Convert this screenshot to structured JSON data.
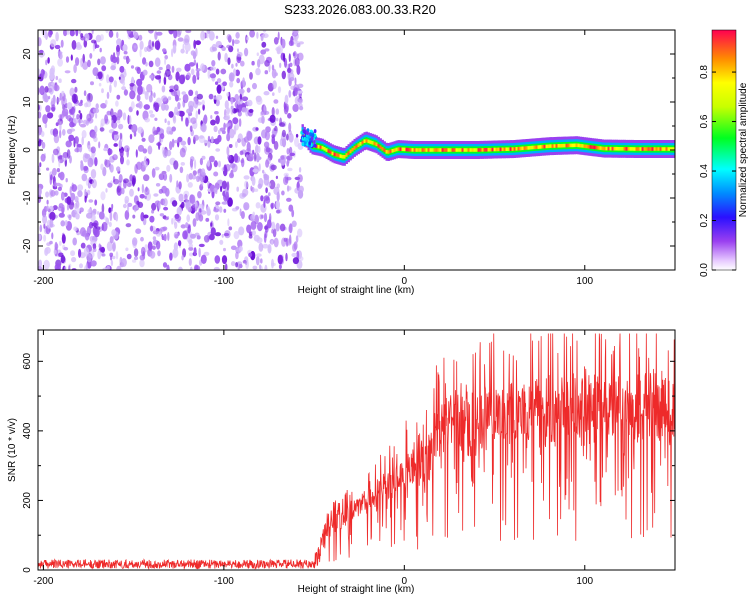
{
  "title": "S233.2026.083.00.33.R20",
  "colors": {
    "snr_line": "#ee2a2a",
    "background": "#ffffff"
  },
  "chart_data": [
    {
      "type": "heatmap",
      "name": "spectrogram",
      "xlabel": "Height of straight line (km)",
      "ylabel": "Frequency (Hz)",
      "xlim": [
        -203,
        150
      ],
      "ylim": [
        -25,
        25
      ],
      "xticks": [
        "-200",
        "-100",
        "0",
        "100"
      ],
      "xtick_values": [
        -200,
        -100,
        0,
        100
      ],
      "yticks": [
        "20",
        "10",
        "0",
        "-10",
        "-20"
      ],
      "ytick_values": [
        20,
        10,
        0,
        -10,
        -20
      ],
      "noise_region_x": [
        -203,
        -57
      ],
      "signal_track": [
        {
          "x": -57,
          "y": 3.5
        },
        {
          "x": -52,
          "y": 1.0
        },
        {
          "x": -46,
          "y": 0.5
        },
        {
          "x": -40,
          "y": -0.8
        },
        {
          "x": -34,
          "y": -1.5
        },
        {
          "x": -28,
          "y": 0.5
        },
        {
          "x": -22,
          "y": 2.0
        },
        {
          "x": -16,
          "y": 1.2
        },
        {
          "x": -10,
          "y": -0.5
        },
        {
          "x": -4,
          "y": 0.2
        },
        {
          "x": 5,
          "y": 0.0
        },
        {
          "x": 20,
          "y": 0.0
        },
        {
          "x": 40,
          "y": 0.0
        },
        {
          "x": 60,
          "y": 0.2
        },
        {
          "x": 80,
          "y": 0.8
        },
        {
          "x": 95,
          "y": 1.0
        },
        {
          "x": 110,
          "y": 0.3
        },
        {
          "x": 130,
          "y": 0.2
        },
        {
          "x": 150,
          "y": 0.2
        }
      ],
      "colorbar": {
        "label": "Normalized spectral amplitude",
        "range": [
          0,
          0.97
        ],
        "ticks": [
          "0.0",
          "0.2",
          "0.4",
          "0.6",
          "0.8"
        ],
        "tick_values": [
          0.0,
          0.2,
          0.4,
          0.6,
          0.8
        ]
      }
    },
    {
      "type": "line",
      "name": "snr",
      "xlabel": "Height of straight line (km)",
      "ylabel": "SNR (10 * v/v)",
      "xlim": [
        -203,
        150
      ],
      "ylim": [
        0,
        690
      ],
      "xticks": [
        "-200",
        "-100",
        "0",
        "100"
      ],
      "xtick_values": [
        -200,
        -100,
        0,
        100
      ],
      "yticks": [
        "0",
        "200",
        "400",
        "600"
      ],
      "ytick_values": [
        0,
        200,
        400,
        600
      ],
      "envelope": [
        {
          "x": -203,
          "y": 15
        },
        {
          "x": -55,
          "y": 15
        },
        {
          "x": -48,
          "y": 30
        },
        {
          "x": -42,
          "y": 130
        },
        {
          "x": -35,
          "y": 160
        },
        {
          "x": -25,
          "y": 200
        },
        {
          "x": -15,
          "y": 240
        },
        {
          "x": -5,
          "y": 290
        },
        {
          "x": 5,
          "y": 360
        },
        {
          "x": 15,
          "y": 440
        },
        {
          "x": 25,
          "y": 500
        },
        {
          "x": 40,
          "y": 530
        },
        {
          "x": 60,
          "y": 545
        },
        {
          "x": 80,
          "y": 555
        },
        {
          "x": 100,
          "y": 560
        },
        {
          "x": 125,
          "y": 560
        },
        {
          "x": 150,
          "y": 560
        }
      ]
    }
  ]
}
